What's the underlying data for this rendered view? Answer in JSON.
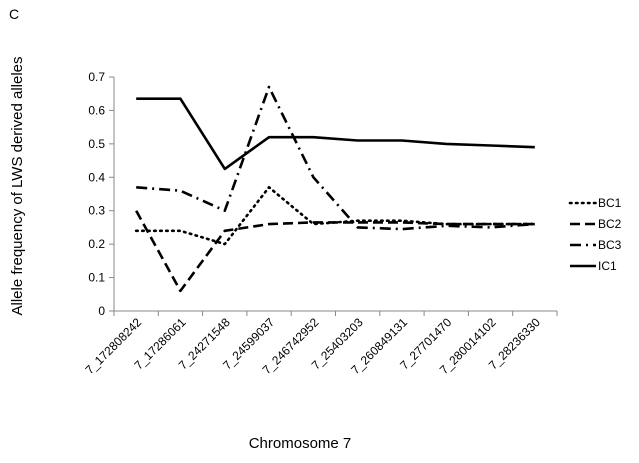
{
  "panel_label": "C",
  "chart_data": {
    "type": "line",
    "title": "",
    "xlabel": "Chromosome 7",
    "ylabel": "Allele frequency of LWS derived alleles",
    "ylim": [
      0,
      0.7
    ],
    "yticks": [
      "0",
      "0.1",
      "0.2",
      "0.3",
      "0.4",
      "0.5",
      "0.6",
      "0.7"
    ],
    "categories": [
      "7_172808242",
      "7_17286061",
      "7_24271548",
      "7_24599037",
      "7_246742952",
      "7_25403203",
      "7_260849131",
      "7_27701470",
      "7_280014102",
      "7_28236330"
    ],
    "grid": false,
    "legend_position": "right",
    "series": [
      {
        "name": "BC1",
        "dash": "dotted",
        "values": [
          0.24,
          0.24,
          0.2,
          0.37,
          0.26,
          0.27,
          0.27,
          0.26,
          0.26,
          0.26
        ]
      },
      {
        "name": "BC2",
        "dash": "dashed",
        "values": [
          0.3,
          0.06,
          0.24,
          0.26,
          0.265,
          0.265,
          0.265,
          0.26,
          0.26,
          0.26
        ]
      },
      {
        "name": "BC3",
        "dash": "dashdot",
        "values": [
          0.37,
          0.36,
          0.3,
          0.67,
          0.4,
          0.25,
          0.245,
          0.255,
          0.25,
          0.26
        ]
      },
      {
        "name": "IC1",
        "dash": "solid",
        "values": [
          0.635,
          0.635,
          0.425,
          0.52,
          0.52,
          0.51,
          0.51,
          0.5,
          0.495,
          0.49
        ]
      }
    ]
  }
}
